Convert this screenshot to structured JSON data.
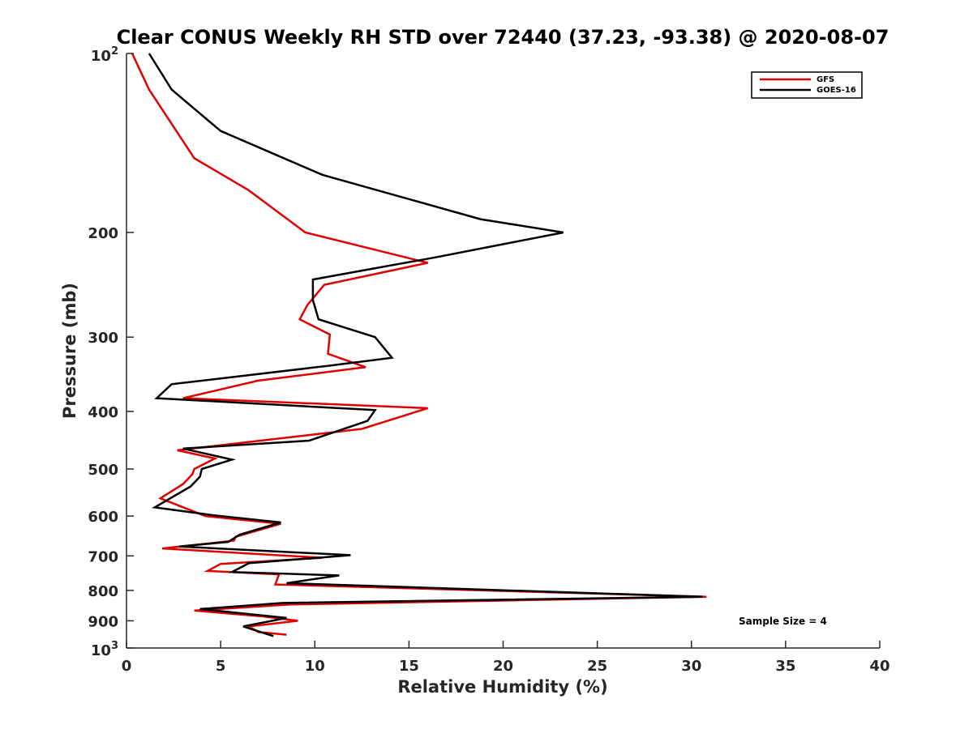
{
  "chart_data": {
    "type": "line",
    "title": "Clear CONUS Weekly RH STD over 72440 (37.23, -93.38) @ 2020-08-07",
    "xlabel": "Relative Humidity (%)",
    "ylabel": "Pressure (mb)",
    "xlim": [
      0,
      40
    ],
    "ylim": [
      100,
      1000
    ],
    "yscale": "log",
    "y_reversed": true,
    "grid": false,
    "legend_position": "top-right",
    "x_ticks": [
      "0",
      "5",
      "10",
      "15",
      "20",
      "25",
      "30",
      "35",
      "40"
    ],
    "y_ticks": [
      {
        "value": 100,
        "base": "10",
        "exp": "2"
      },
      {
        "value": 200,
        "label": "200"
      },
      {
        "value": 300,
        "label": "300"
      },
      {
        "value": 400,
        "label": "400"
      },
      {
        "value": 500,
        "label": "500"
      },
      {
        "value": 600,
        "label": "600"
      },
      {
        "value": 700,
        "label": "700"
      },
      {
        "value": 800,
        "label": "800"
      },
      {
        "value": 900,
        "label": "900"
      },
      {
        "value": 1000,
        "base": "10",
        "exp": "3"
      }
    ],
    "annotation": "Sample Size = 4",
    "series": [
      {
        "name": "GFS",
        "color": "#e00000",
        "points": [
          [
            0.3,
            100
          ],
          [
            1.2,
            115
          ],
          [
            3.6,
            150
          ],
          [
            6.5,
            170
          ],
          [
            9.5,
            200
          ],
          [
            16.0,
            225
          ],
          [
            10.5,
            245
          ],
          [
            9.6,
            265
          ],
          [
            9.2,
            280
          ],
          [
            10.8,
            297
          ],
          [
            10.7,
            320
          ],
          [
            12.7,
            337
          ],
          [
            7.0,
            355
          ],
          [
            3.0,
            380
          ],
          [
            16.0,
            395
          ],
          [
            12.5,
            428
          ],
          [
            2.7,
            465
          ],
          [
            4.7,
            480
          ],
          [
            3.6,
            500
          ],
          [
            3.5,
            510
          ],
          [
            3.0,
            530
          ],
          [
            1.8,
            560
          ],
          [
            4.2,
            600
          ],
          [
            8.2,
            618
          ],
          [
            5.8,
            650
          ],
          [
            5.7,
            660
          ],
          [
            1.9,
            680
          ],
          [
            10.4,
            705
          ],
          [
            5.0,
            722
          ],
          [
            4.3,
            742
          ],
          [
            8.1,
            752
          ],
          [
            7.9,
            782
          ],
          [
            30.8,
            820
          ],
          [
            8.7,
            845
          ],
          [
            3.6,
            865
          ],
          [
            7.3,
            885
          ],
          [
            9.1,
            900
          ],
          [
            6.5,
            920
          ],
          [
            7.0,
            940
          ],
          [
            8.5,
            950
          ]
        ]
      },
      {
        "name": "GOES-16",
        "color": "#000000",
        "points": [
          [
            1.2,
            100
          ],
          [
            2.4,
            115
          ],
          [
            5.0,
            135
          ],
          [
            10.4,
            160
          ],
          [
            18.8,
            190
          ],
          [
            23.2,
            200
          ],
          [
            16.5,
            220
          ],
          [
            9.9,
            240
          ],
          [
            9.9,
            260
          ],
          [
            10.2,
            280
          ],
          [
            13.2,
            300
          ],
          [
            14.1,
            325
          ],
          [
            10.8,
            335
          ],
          [
            2.4,
            360
          ],
          [
            1.6,
            380
          ],
          [
            13.2,
            398
          ],
          [
            12.8,
            415
          ],
          [
            9.7,
            448
          ],
          [
            3.0,
            462
          ],
          [
            5.6,
            482
          ],
          [
            4.0,
            500
          ],
          [
            3.9,
            515
          ],
          [
            3.4,
            535
          ],
          [
            1.5,
            580
          ],
          [
            4.6,
            598
          ],
          [
            8.2,
            615
          ],
          [
            6.0,
            645
          ],
          [
            5.4,
            663
          ],
          [
            2.8,
            675
          ],
          [
            11.9,
            698
          ],
          [
            6.5,
            720
          ],
          [
            5.6,
            745
          ],
          [
            11.3,
            755
          ],
          [
            8.5,
            778
          ],
          [
            30.6,
            820
          ],
          [
            8.3,
            840
          ],
          [
            3.9,
            860
          ],
          [
            8.5,
            890
          ],
          [
            6.2,
            920
          ],
          [
            7.8,
            955
          ]
        ]
      }
    ]
  }
}
